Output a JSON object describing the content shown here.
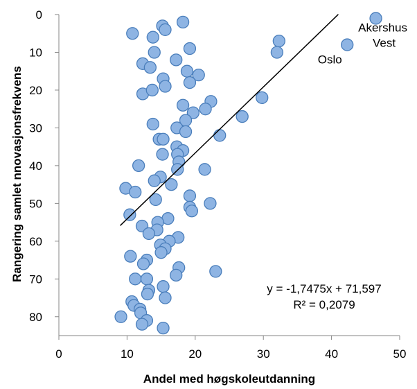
{
  "chart_data": {
    "type": "scatter",
    "title": "",
    "xlabel": "Andel med høgskoleutdanning",
    "ylabel": "Rangering samlet nnovasjonsfrekvens",
    "xlim": [
      0,
      50
    ],
    "ylim": [
      0,
      85
    ],
    "y_inverted": true,
    "x_ticks": [
      "0",
      "10",
      "20",
      "30",
      "40",
      "50"
    ],
    "y_ticks": [
      "0",
      "10",
      "20",
      "30",
      "40",
      "50",
      "60",
      "70",
      "80"
    ],
    "grid": false,
    "marker_color": "#8EB4E3",
    "marker_edge_color": "#4A7EBB",
    "trendline": {
      "slope": -1.7475,
      "intercept": 71.597,
      "x_start": 9,
      "x_end": 41
    },
    "equation_label": "y = -1,7475x + 71,597",
    "r2_label": "R² = 0,2079",
    "point_labels": [
      {
        "text": "Akershus",
        "x": 46.5,
        "y": 1
      },
      {
        "text": "Vest",
        "x": 46.5,
        "y": 1
      },
      {
        "text": "Oslo",
        "x": 42.3,
        "y": 8
      }
    ],
    "series": [
      {
        "points": [
          {
            "x": 46.5,
            "y": 1
          },
          {
            "x": 42.3,
            "y": 8
          },
          {
            "x": 32.3,
            "y": 7
          },
          {
            "x": 32.0,
            "y": 10
          },
          {
            "x": 18.2,
            "y": 2
          },
          {
            "x": 15.2,
            "y": 3
          },
          {
            "x": 15.6,
            "y": 4
          },
          {
            "x": 10.8,
            "y": 5
          },
          {
            "x": 13.8,
            "y": 6
          },
          {
            "x": 19.2,
            "y": 9
          },
          {
            "x": 14.0,
            "y": 10
          },
          {
            "x": 17.2,
            "y": 12
          },
          {
            "x": 12.3,
            "y": 13
          },
          {
            "x": 13.4,
            "y": 14
          },
          {
            "x": 18.8,
            "y": 15
          },
          {
            "x": 20.5,
            "y": 16
          },
          {
            "x": 15.3,
            "y": 17
          },
          {
            "x": 19.2,
            "y": 18
          },
          {
            "x": 15.6,
            "y": 19
          },
          {
            "x": 12.3,
            "y": 21
          },
          {
            "x": 13.7,
            "y": 20
          },
          {
            "x": 29.8,
            "y": 22
          },
          {
            "x": 22.3,
            "y": 23
          },
          {
            "x": 18.2,
            "y": 24
          },
          {
            "x": 21.5,
            "y": 25
          },
          {
            "x": 19.7,
            "y": 26
          },
          {
            "x": 26.9,
            "y": 27
          },
          {
            "x": 18.6,
            "y": 28
          },
          {
            "x": 13.8,
            "y": 29
          },
          {
            "x": 17.3,
            "y": 30
          },
          {
            "x": 18.6,
            "y": 31
          },
          {
            "x": 23.6,
            "y": 32
          },
          {
            "x": 14.7,
            "y": 33
          },
          {
            "x": 15.3,
            "y": 33
          },
          {
            "x": 17.3,
            "y": 35
          },
          {
            "x": 18.2,
            "y": 36
          },
          {
            "x": 17.4,
            "y": 37
          },
          {
            "x": 15.2,
            "y": 37
          },
          {
            "x": 17.6,
            "y": 39
          },
          {
            "x": 11.7,
            "y": 40
          },
          {
            "x": 21.4,
            "y": 41
          },
          {
            "x": 17.4,
            "y": 41
          },
          {
            "x": 14.9,
            "y": 43
          },
          {
            "x": 14.0,
            "y": 44
          },
          {
            "x": 16.5,
            "y": 45
          },
          {
            "x": 9.8,
            "y": 46
          },
          {
            "x": 11.2,
            "y": 47
          },
          {
            "x": 19.2,
            "y": 48
          },
          {
            "x": 14.2,
            "y": 49
          },
          {
            "x": 22.2,
            "y": 50
          },
          {
            "x": 19.2,
            "y": 51
          },
          {
            "x": 19.5,
            "y": 52
          },
          {
            "x": 10.4,
            "y": 53
          },
          {
            "x": 16.0,
            "y": 54
          },
          {
            "x": 14.5,
            "y": 55
          },
          {
            "x": 12.2,
            "y": 56
          },
          {
            "x": 14.4,
            "y": 57
          },
          {
            "x": 13.2,
            "y": 58
          },
          {
            "x": 17.5,
            "y": 59
          },
          {
            "x": 16.2,
            "y": 60
          },
          {
            "x": 14.9,
            "y": 61
          },
          {
            "x": 15.6,
            "y": 62
          },
          {
            "x": 15.0,
            "y": 63
          },
          {
            "x": 10.5,
            "y": 64
          },
          {
            "x": 12.9,
            "y": 65
          },
          {
            "x": 12.4,
            "y": 66
          },
          {
            "x": 17.6,
            "y": 67
          },
          {
            "x": 23.0,
            "y": 68
          },
          {
            "x": 17.2,
            "y": 69
          },
          {
            "x": 11.2,
            "y": 70
          },
          {
            "x": 12.9,
            "y": 70
          },
          {
            "x": 15.3,
            "y": 72
          },
          {
            "x": 13.2,
            "y": 73
          },
          {
            "x": 13.0,
            "y": 74
          },
          {
            "x": 15.6,
            "y": 75
          },
          {
            "x": 10.7,
            "y": 76
          },
          {
            "x": 11.0,
            "y": 77
          },
          {
            "x": 11.9,
            "y": 78
          },
          {
            "x": 12.0,
            "y": 79
          },
          {
            "x": 9.1,
            "y": 80
          },
          {
            "x": 12.9,
            "y": 81
          },
          {
            "x": 12.2,
            "y": 82
          },
          {
            "x": 15.3,
            "y": 83
          }
        ]
      }
    ]
  }
}
